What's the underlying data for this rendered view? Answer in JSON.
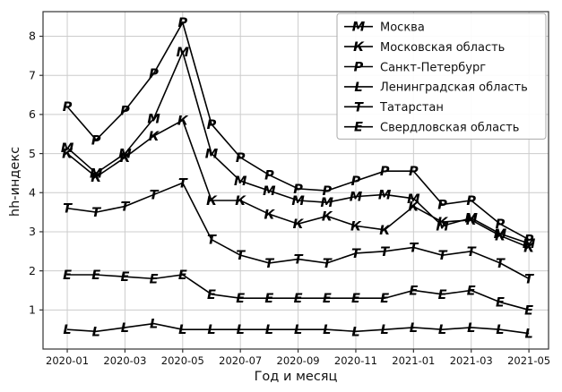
{
  "chart_data": {
    "type": "line",
    "title": "",
    "xlabel": "Год и месяц",
    "ylabel": "hh-индекс",
    "x": [
      "2020-01",
      "2020-02",
      "2020-03",
      "2020-04",
      "2020-05",
      "2020-06",
      "2020-07",
      "2020-08",
      "2020-09",
      "2020-10",
      "2020-11",
      "2020-12",
      "2021-01",
      "2021-02",
      "2021-03",
      "2021-04",
      "2021-05"
    ],
    "x_ticklabels": [
      "2020-01",
      "2020-03",
      "2020-05",
      "2020-07",
      "2020-09",
      "2020-11",
      "2021-01",
      "2021-03",
      "2021-05"
    ],
    "y_ticks": [
      1,
      2,
      3,
      4,
      5,
      6,
      7,
      8
    ],
    "xlim": [
      -0.84,
      16.68
    ],
    "ylim": [
      0,
      8.63
    ],
    "grid": true,
    "grid_color": "#cccccc",
    "line_color": "#000000",
    "frame_color": "#333333",
    "legend_position": "upper right",
    "series": [
      {
        "name": "Москва",
        "marker": "М",
        "color": "#000000",
        "values": [
          5.15,
          4.5,
          5.0,
          5.9,
          7.6,
          5.0,
          4.3,
          4.05,
          3.8,
          3.75,
          3.9,
          3.95,
          3.85,
          3.15,
          3.35,
          2.95,
          2.7
        ]
      },
      {
        "name": "Московская область",
        "marker": "К",
        "color": "#000000",
        "values": [
          5.0,
          4.4,
          4.9,
          5.45,
          5.85,
          3.8,
          3.8,
          3.45,
          3.2,
          3.4,
          3.15,
          3.05,
          3.65,
          3.25,
          3.3,
          2.9,
          2.6
        ]
      },
      {
        "name": "Санкт-Петербург",
        "marker": "Р",
        "color": "#000000",
        "values": [
          6.2,
          5.35,
          6.1,
          7.05,
          8.35,
          5.75,
          4.9,
          4.45,
          4.1,
          4.05,
          4.3,
          4.55,
          4.55,
          3.7,
          3.8,
          3.2,
          2.8
        ]
      },
      {
        "name": "Ленинградская область",
        "marker": "L",
        "color": "#000000",
        "values": [
          0.5,
          0.45,
          0.55,
          0.65,
          0.5,
          0.5,
          0.5,
          0.5,
          0.5,
          0.5,
          0.45,
          0.5,
          0.55,
          0.5,
          0.55,
          0.5,
          0.4
        ]
      },
      {
        "name": "Татарстан",
        "marker": "Т",
        "color": "#000000",
        "values": [
          3.6,
          3.5,
          3.65,
          3.95,
          4.25,
          2.8,
          2.4,
          2.2,
          2.3,
          2.2,
          2.45,
          2.5,
          2.6,
          2.4,
          2.5,
          2.2,
          1.8
        ]
      },
      {
        "name": "Свердловская область",
        "marker": "Е",
        "color": "#000000",
        "values": [
          1.9,
          1.9,
          1.85,
          1.8,
          1.9,
          1.4,
          1.3,
          1.3,
          1.3,
          1.3,
          1.3,
          1.3,
          1.5,
          1.4,
          1.5,
          1.2,
          1.0
        ]
      }
    ]
  }
}
